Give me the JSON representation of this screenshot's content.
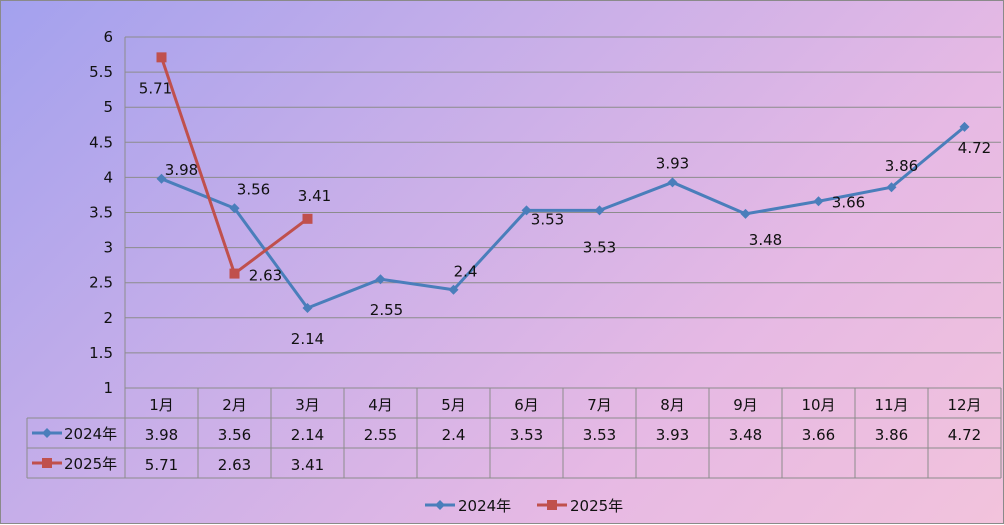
{
  "chart_data": {
    "type": "line",
    "categories": [
      "1月",
      "2月",
      "3月",
      "4月",
      "5月",
      "6月",
      "7月",
      "8月",
      "9月",
      "10月",
      "11月",
      "12月"
    ],
    "series": [
      {
        "name": "2024年",
        "color": "#4a7ebb",
        "marker": "diamond",
        "values": [
          3.98,
          3.56,
          2.14,
          2.55,
          2.4,
          3.53,
          3.53,
          3.93,
          3.48,
          3.66,
          3.86,
          4.72
        ]
      },
      {
        "name": "2025年",
        "color": "#c0504d",
        "marker": "square",
        "values": [
          5.71,
          2.63,
          3.41,
          null,
          null,
          null,
          null,
          null,
          null,
          null,
          null,
          null
        ]
      }
    ],
    "ylim": [
      1,
      6
    ],
    "yticks": [
      "1",
      "1.5",
      "2",
      "2.5",
      "3",
      "3.5",
      "4",
      "4.5",
      "5",
      "5.5",
      "6"
    ],
    "grid": true,
    "data_table": true,
    "legend": "bottom"
  }
}
